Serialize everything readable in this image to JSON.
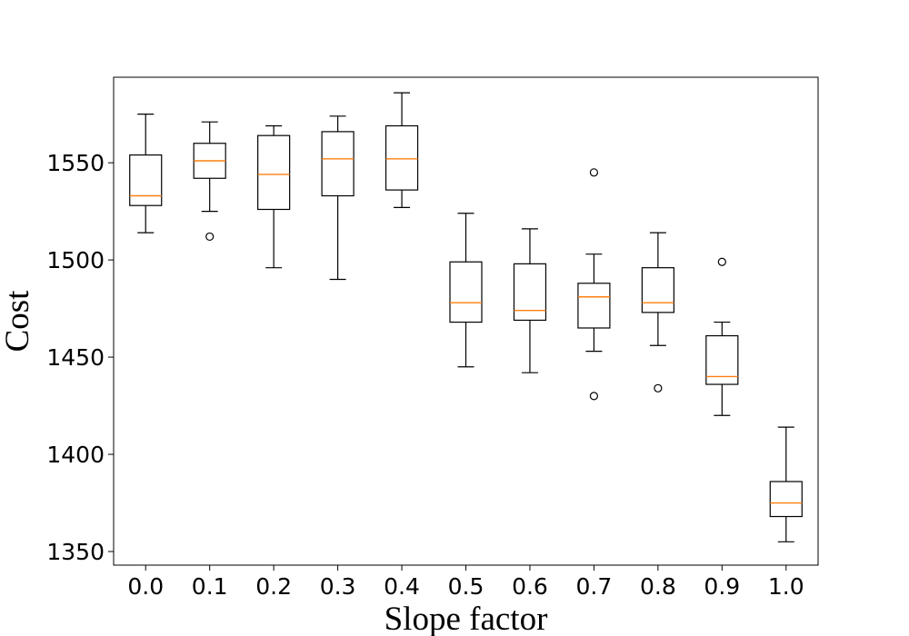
{
  "chart_data": {
    "type": "box",
    "title": "",
    "xlabel": "Slope factor",
    "ylabel": "Cost",
    "ylim": [
      1343,
      1594
    ],
    "yticks": [
      1350,
      1400,
      1450,
      1500,
      1550
    ],
    "categories": [
      "0.0",
      "0.1",
      "0.2",
      "0.3",
      "0.4",
      "0.5",
      "0.6",
      "0.7",
      "0.8",
      "0.9",
      "1.0"
    ],
    "boxes": [
      {
        "whisker_low": 1514,
        "q1": 1528,
        "median": 1533,
        "q3": 1554,
        "whisker_high": 1575,
        "outliers": []
      },
      {
        "whisker_low": 1525,
        "q1": 1542,
        "median": 1551,
        "q3": 1560,
        "whisker_high": 1571,
        "outliers": [
          1512
        ]
      },
      {
        "whisker_low": 1496,
        "q1": 1526,
        "median": 1544,
        "q3": 1564,
        "whisker_high": 1569,
        "outliers": []
      },
      {
        "whisker_low": 1490,
        "q1": 1533,
        "median": 1552,
        "q3": 1566,
        "whisker_high": 1574,
        "outliers": []
      },
      {
        "whisker_low": 1527,
        "q1": 1536,
        "median": 1552,
        "q3": 1569,
        "whisker_high": 1586,
        "outliers": []
      },
      {
        "whisker_low": 1445,
        "q1": 1468,
        "median": 1478,
        "q3": 1499,
        "whisker_high": 1524,
        "outliers": []
      },
      {
        "whisker_low": 1442,
        "q1": 1469,
        "median": 1474,
        "q3": 1498,
        "whisker_high": 1516,
        "outliers": []
      },
      {
        "whisker_low": 1453,
        "q1": 1465,
        "median": 1481,
        "q3": 1488,
        "whisker_high": 1503,
        "outliers": [
          1545,
          1430
        ]
      },
      {
        "whisker_low": 1456,
        "q1": 1473,
        "median": 1478,
        "q3": 1496,
        "whisker_high": 1514,
        "outliers": [
          1434
        ]
      },
      {
        "whisker_low": 1420,
        "q1": 1436,
        "median": 1440,
        "q3": 1461,
        "whisker_high": 1468,
        "outliers": [
          1499
        ]
      },
      {
        "whisker_low": 1355,
        "q1": 1368,
        "median": 1375,
        "q3": 1386,
        "whisker_high": 1414,
        "outliers": []
      }
    ],
    "colors": {
      "box": "#000000",
      "median": "#ff7f0e",
      "outlier": "#000000"
    },
    "grid": false,
    "legend": null
  }
}
